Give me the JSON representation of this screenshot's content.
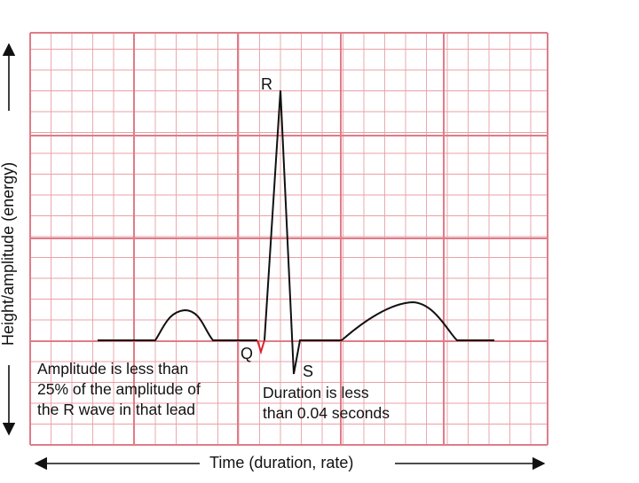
{
  "axes": {
    "x_label": "Time (duration, rate)",
    "y_label": "Height/amplitude (energy)"
  },
  "waves": {
    "r_label": "R",
    "q_label": "Q",
    "s_label": "S"
  },
  "notes": {
    "q_amplitude_lines": [
      "Amplitude is less than",
      "25% of the amplitude of",
      "the R wave in that lead"
    ],
    "q_duration_lines": [
      "Duration is less",
      "than 0.04 seconds"
    ]
  },
  "colors": {
    "grid": "#e8a0a8",
    "grid_major": "#e07c88",
    "trace": "#111111",
    "q_wave_highlight": "#e0202a"
  }
}
